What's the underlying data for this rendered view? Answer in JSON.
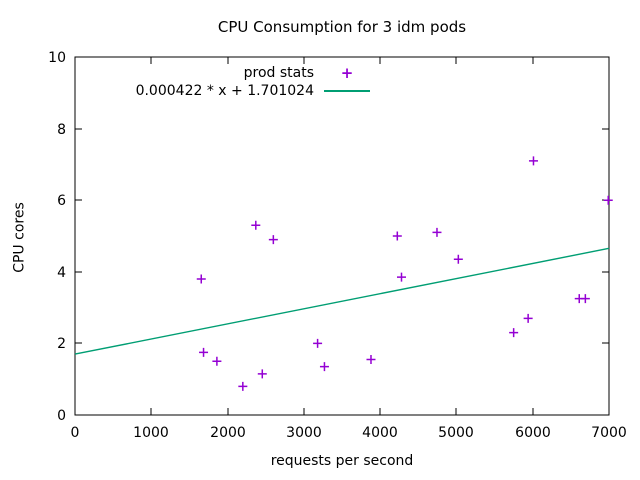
{
  "title": "CPU Consumption for 3 idm pods",
  "axes": {
    "x_label": "requests per second",
    "y_label": "CPU cores"
  },
  "legend": {
    "series1_label": "prod stats",
    "series1_marker": "+",
    "series2_label": "0.000422 * x + 1.701024"
  },
  "colors": {
    "points": "#9400d3",
    "fit_line": "#009e73",
    "axis": "#000000",
    "background": "#ffffff"
  },
  "chart_data": {
    "type": "scatter",
    "title": "CPU Consumption for 3 idm pods",
    "xlabel": "requests per second",
    "ylabel": "CPU cores",
    "xlim": [
      0,
      7000
    ],
    "ylim": [
      0,
      10
    ],
    "x_ticks": [
      0,
      1000,
      2000,
      3000,
      4000,
      5000,
      6000,
      7000
    ],
    "y_ticks": [
      0,
      2,
      4,
      6,
      8,
      10
    ],
    "grid": false,
    "legend_position": "top-center-inside",
    "series": [
      {
        "name": "prod stats",
        "type": "scatter",
        "marker": "plus",
        "color": "#9400d3",
        "points": [
          [
            1655,
            3.8
          ],
          [
            1685,
            1.75
          ],
          [
            1860,
            1.5
          ],
          [
            2200,
            0.8
          ],
          [
            2370,
            5.3
          ],
          [
            2455,
            1.15
          ],
          [
            2600,
            4.9
          ],
          [
            3180,
            2.0
          ],
          [
            3270,
            1.35
          ],
          [
            3880,
            1.55
          ],
          [
            4225,
            5.0
          ],
          [
            4280,
            3.85
          ],
          [
            4745,
            5.1
          ],
          [
            5025,
            4.35
          ],
          [
            5750,
            2.3
          ],
          [
            5940,
            2.7
          ],
          [
            6010,
            7.1
          ],
          [
            6610,
            3.25
          ],
          [
            6690,
            3.25
          ],
          [
            6990,
            6.0
          ]
        ]
      },
      {
        "name": "0.000422 * x + 1.701024",
        "type": "line",
        "color": "#009e73",
        "slope": 0.000422,
        "intercept": 1.701024,
        "x_range": [
          0,
          7000
        ]
      }
    ]
  }
}
